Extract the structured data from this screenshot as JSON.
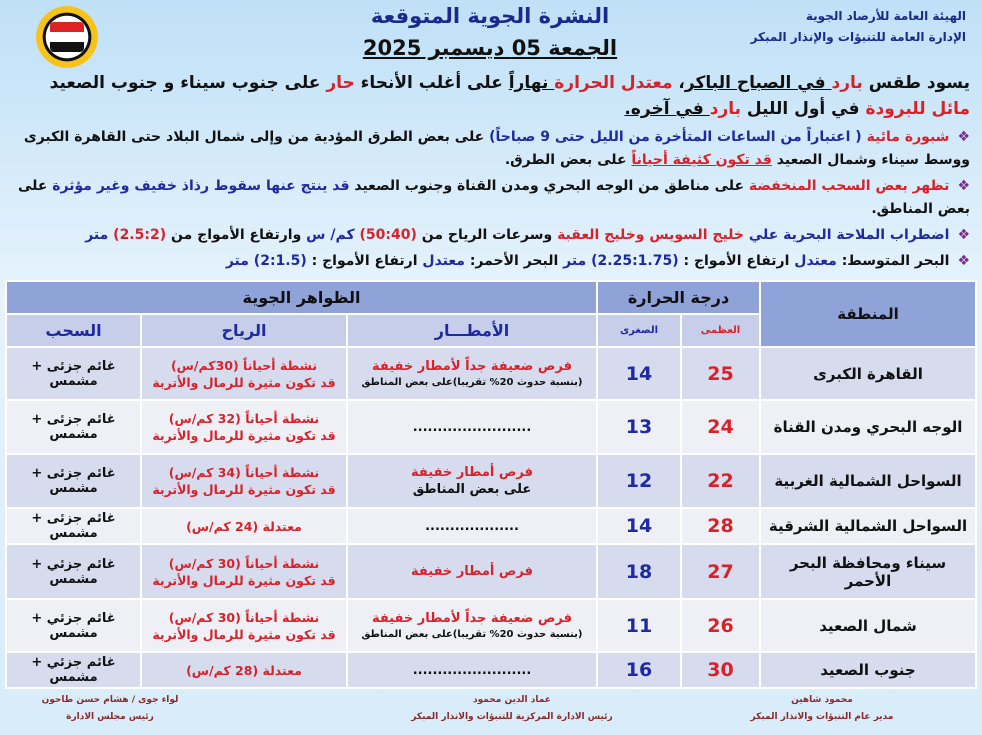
{
  "header": {
    "org_line1": "الهيئة العامة للأرصاد الجوية",
    "org_line2": "الإدارة العامة للتنبؤات والإنذار المبكر",
    "title": "النشرة الجوية المتوقعة",
    "date": "الجمعة 05 ديسمبر 2025",
    "logo": "EMA"
  },
  "summary": [
    {
      "t": "يسود طقس ",
      "c": "blk"
    },
    {
      "t": "بارد",
      "c": "red"
    },
    {
      "t": " في الصباح الباكر",
      "c": "blk",
      "u": true
    },
    {
      "t": "، ",
      "c": "blk"
    },
    {
      "t": "معتدل الحرارة",
      "c": "red"
    },
    {
      "t": " نهاراً",
      "c": "blk",
      "u": true
    },
    {
      "t": " على أغلب الأنحاء ",
      "c": "blk"
    },
    {
      "t": "حار",
      "c": "red"
    },
    {
      "t": " على جنوب سيناء و جنوب الصعيد ",
      "c": "blk"
    },
    {
      "t": "مائل للبرودة",
      "c": "red"
    },
    {
      "t": " في أول الليل ",
      "c": "blk"
    },
    {
      "t": "بارد",
      "c": "red"
    },
    {
      "t": " في آخره.",
      "c": "blk",
      "u": true
    }
  ],
  "bullets": [
    [
      {
        "t": "شبورة مائية",
        "c": "red"
      },
      {
        "t": " ( اعتباراً من الساعات المتأخرة من الليل حتى 9 صباحاً)",
        "c": "blue"
      },
      {
        "t": " على بعض الطرق المؤدية من وإلى شمال البلاد حتى القاهرة الكبرى ووسط سيناء وشمال الصعيد ",
        "c": "blk"
      },
      {
        "t": "قد تكون كثيفة أحياناً",
        "c": "red",
        "u": true
      },
      {
        "t": " على بعض الطرق.",
        "c": "blk"
      }
    ],
    [
      {
        "t": "تظهر بعض السحب المنخفضة",
        "c": "red"
      },
      {
        "t": " على مناطق من الوجه البحري ومدن القناة وجنوب الصعيد ",
        "c": "blk"
      },
      {
        "t": "قد ينتج عنها سقوط رذاذ خفيف وغير مؤثرة",
        "c": "blue"
      },
      {
        "t": " على بعض المناطق.",
        "c": "blk"
      }
    ],
    [
      {
        "t": "اضطراب الملاحة البحرية علي ",
        "c": "blue"
      },
      {
        "t": "خليج السويس وخليج العقبة",
        "c": "red"
      },
      {
        "t": " وسرعات الرياح من ",
        "c": "blk"
      },
      {
        "t": "(50:40)",
        "c": "red"
      },
      {
        "t": " كم/ س",
        "c": "blue"
      },
      {
        "t": " وارتفاع الأمواج من ",
        "c": "blk"
      },
      {
        "t": "(2.5:2)",
        "c": "red"
      },
      {
        "t": " متر",
        "c": "blue"
      }
    ],
    [
      {
        "t": "البحر المتوسط: ",
        "c": "blk"
      },
      {
        "t": "معتدل",
        "c": "blue"
      },
      {
        "t": "      ارتفاع الأمواج : ",
        "c": "blk"
      },
      {
        "t": "(2.25:1.75) متر",
        "c": "blue"
      },
      {
        "t": "          البحر الأحمر: ",
        "c": "blk"
      },
      {
        "t": "معتدل",
        "c": "blue"
      },
      {
        "t": "  ارتفاع الأمواج : ",
        "c": "blk"
      },
      {
        "t": "(2:1.5) متر",
        "c": "blue"
      }
    ]
  ],
  "table": {
    "region": "المنطقة",
    "temperature": "درجة الحرارة",
    "max": "العظمى",
    "min": "الصغرى",
    "phenomena": "الظواهر الجوية",
    "rain": "الأمطـــار",
    "wind": "الرياح",
    "clouds": "السحب",
    "rows": [
      {
        "region": "القاهرة الكبرى",
        "max": "25",
        "min": "14",
        "rain": "فرص ضعيفة جداً لأمطار خفيفة",
        "rain_note": "(بنسبة حدوث 20% تقريبا)على بعض المناطق",
        "wind1": "نشطة أحياناً (30كم/س)",
        "wind2": "قد تكون مثيرة للرمال والأتربة",
        "clouds": "غائم جزئى + مشمس"
      },
      {
        "region": "الوجه البحري ومدن القناة",
        "max": "24",
        "min": "13",
        "rain": "........................",
        "rain_note": "",
        "wind1": "نشطة أحياناً (32 كم/س)",
        "wind2": "قد تكون مثيرة للرمال والأتربة",
        "clouds": "غائم جزئى + مشمس"
      },
      {
        "region": "السواحل الشمالية الغربية",
        "max": "22",
        "min": "12",
        "rain": "فرص أمطار خفيفة",
        "rain_note": "على بعض المناطق",
        "wind1": "نشطة أحياناً (34 كم/س)",
        "wind2": "قد تكون مثيرة للرمال والأتربة",
        "clouds": "غائم جزئى + مشمس"
      },
      {
        "region": "السواحل الشمالية الشرقية",
        "max": "28",
        "min": "14",
        "rain": "...................",
        "rain_note": "",
        "wind1": "معتدلة (24 كم/س)",
        "wind2": "",
        "clouds": "غائم جزئى + مشمس"
      },
      {
        "region": "سيناء ومحافظة البحر الأحمر",
        "max": "27",
        "min": "18",
        "rain": "فرص أمطار خفيفة",
        "rain_note": "",
        "wind1": "نشطة أحياناً (30 كم/س)",
        "wind2": "قد تكون مثيرة للرمال والأتربة",
        "clouds": "غائم جزئي + مشمس"
      },
      {
        "region": "شمال الصعيد",
        "max": "26",
        "min": "11",
        "rain": "فرص ضعيفة جداً لأمطار خفيفة",
        "rain_note": "(بنسبة حدوث 20% تقريبا)على بعض المناطق",
        "wind1": "نشطة أحياناً (30 كم/س)",
        "wind2": "قد تكون مثيرة للرمال والأتربة",
        "clouds": "غائم جزئي + مشمس"
      },
      {
        "region": "جنوب الصعيد",
        "max": "30",
        "min": "16",
        "rain": "........................",
        "rain_note": "",
        "wind1": "معتدلة (28 كم/س)",
        "wind2": "",
        "clouds": "غائم جزئي + مشمس"
      }
    ]
  },
  "footer": {
    "sig1_name": "محمود شاهين",
    "sig1_title": "مدير عام التنبؤات والانذار المبكر",
    "sig2_name": "عماد الدين محمود",
    "sig2_title": "رئيس الادارة المركزية للتنبؤات والانذار المبكر",
    "sig3_name": "لواء جوى / هشام حسن طاحون",
    "sig3_title": "رئيس مجلس الادارة"
  },
  "colors": {
    "red": "#d8222a",
    "blue": "#1f2aa0",
    "header_bg": "#8fa3d8"
  }
}
